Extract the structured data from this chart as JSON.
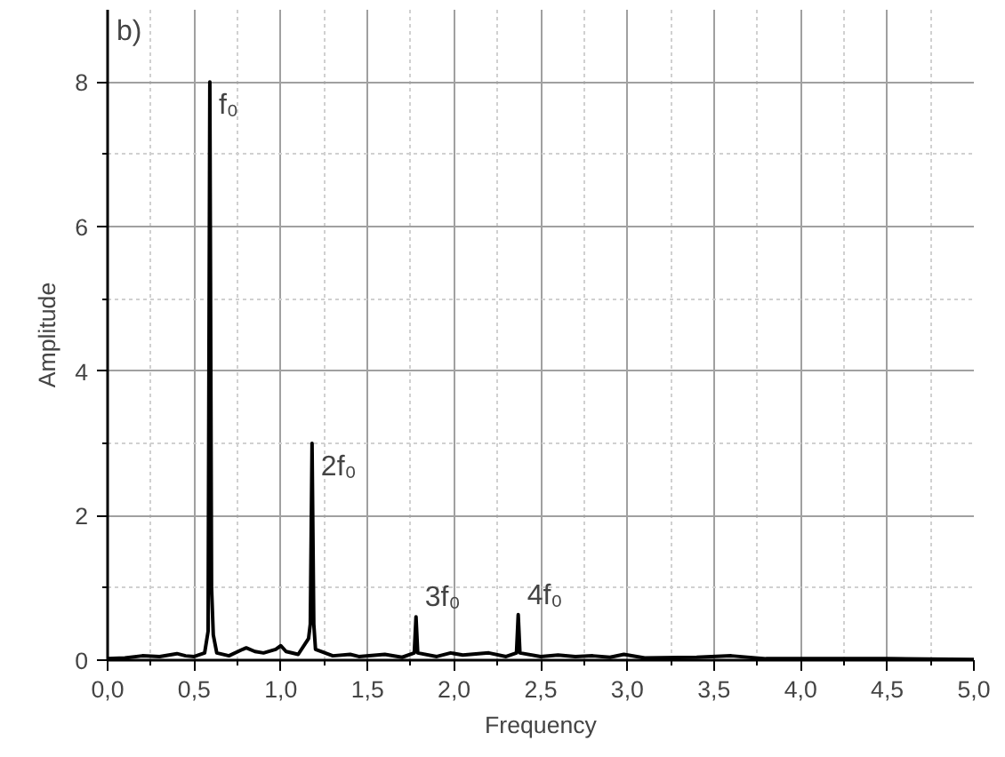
{
  "chart_data": {
    "type": "line",
    "title": "b)",
    "xlabel": "Frequency",
    "ylabel": "Amplitude",
    "x": [
      0,
      0.1,
      0.2,
      0.3,
      0.4,
      0.45,
      0.5,
      0.56,
      0.58,
      0.59,
      0.6,
      0.61,
      0.63,
      0.7,
      0.78,
      0.8,
      0.85,
      0.9,
      0.97,
      1.0,
      1.03,
      1.1,
      1.16,
      1.17,
      1.18,
      1.19,
      1.2,
      1.3,
      1.4,
      1.45,
      1.6,
      1.7,
      1.77,
      1.78,
      1.79,
      1.9,
      1.98,
      2.05,
      2.2,
      2.3,
      2.36,
      2.37,
      2.38,
      2.5,
      2.6,
      2.7,
      2.8,
      2.9,
      2.98,
      3.1,
      3.4,
      3.6,
      3.8,
      4.0,
      4.5,
      5.0
    ],
    "series": [
      {
        "color": "#000000",
        "values": [
          0.02,
          0.03,
          0.06,
          0.05,
          0.09,
          0.06,
          0.05,
          0.1,
          0.4,
          8.0,
          1.0,
          0.35,
          0.1,
          0.06,
          0.15,
          0.17,
          0.12,
          0.1,
          0.15,
          0.2,
          0.12,
          0.08,
          0.3,
          0.5,
          3.0,
          0.5,
          0.15,
          0.06,
          0.08,
          0.05,
          0.08,
          0.04,
          0.1,
          0.6,
          0.1,
          0.05,
          0.1,
          0.07,
          0.1,
          0.05,
          0.1,
          0.63,
          0.1,
          0.05,
          0.07,
          0.05,
          0.06,
          0.04,
          0.08,
          0.03,
          0.04,
          0.06,
          0.02,
          0.02,
          0.02,
          0.01
        ]
      }
    ],
    "xlim": [
      0,
      5
    ],
    "ylim": [
      0,
      9
    ],
    "xticks": [
      {
        "value": 0,
        "label": "0,0"
      },
      {
        "value": 0.25,
        "label": null
      },
      {
        "value": 0.5,
        "label": "0,5"
      },
      {
        "value": 0.75,
        "label": null
      },
      {
        "value": 1,
        "label": "1,0"
      },
      {
        "value": 1.25,
        "label": null
      },
      {
        "value": 1.5,
        "label": "1,5"
      },
      {
        "value": 1.75,
        "label": null
      },
      {
        "value": 2,
        "label": "2,0"
      },
      {
        "value": 2.25,
        "label": null
      },
      {
        "value": 2.5,
        "label": "2,5"
      },
      {
        "value": 2.75,
        "label": null
      },
      {
        "value": 3,
        "label": "3,0"
      },
      {
        "value": 3.25,
        "label": null
      },
      {
        "value": 3.5,
        "label": "3,5"
      },
      {
        "value": 3.75,
        "label": null
      },
      {
        "value": 4,
        "label": "4,0"
      },
      {
        "value": 4.25,
        "label": null
      },
      {
        "value": 4.5,
        "label": "4,5"
      },
      {
        "value": 4.75,
        "label": null
      },
      {
        "value": 5,
        "label": "5,0"
      }
    ],
    "yticks": [
      0,
      {
        "value": 1,
        "label": null
      },
      2,
      {
        "value": 3,
        "label": null
      },
      4,
      {
        "value": 5,
        "label": null
      },
      6,
      {
        "value": 7,
        "label": null
      },
      8
    ],
    "grid": true,
    "marker": "none",
    "line_style": "solid",
    "annotations": [
      {
        "text": "f₀",
        "x": 0.59,
        "y": 8.0
      },
      {
        "text": "2f₀",
        "x": 1.18,
        "y": 3.0
      },
      {
        "text": "3f₀",
        "x": 1.78,
        "y": 0.6
      },
      {
        "text": "4f₀",
        "x": 2.37,
        "y": 0.63
      }
    ]
  }
}
